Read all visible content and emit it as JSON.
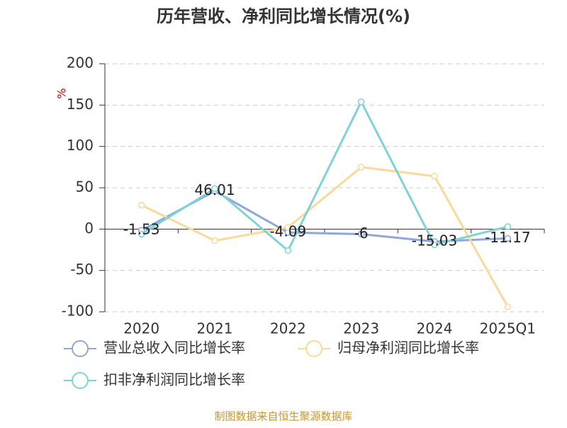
{
  "chart_data": {
    "type": "line",
    "title": "历年营收、净利同比增长情况(%)",
    "y_label": "%",
    "categories": [
      "2020",
      "2021",
      "2022",
      "2023",
      "2024",
      "2025Q1"
    ],
    "series": [
      {
        "name": "营业总收入同比增长率",
        "color": "#8fa8d8",
        "values": [
          -1.53,
          46.01,
          -4.09,
          -6,
          -15.03,
          -11.17
        ],
        "show_labels": true
      },
      {
        "name": "归母净利润同比增长率",
        "color": "#fad99a",
        "values": [
          29,
          -14,
          2,
          75,
          64,
          -94
        ]
      },
      {
        "name": "扣非净利润同比增长率",
        "color": "#7fd3d6",
        "values": [
          -6,
          49,
          -26,
          154,
          -19,
          3
        ]
      }
    ],
    "ylim": [
      -100,
      200
    ],
    "yticks": [
      -100,
      -50,
      0,
      50,
      100,
      150,
      200
    ],
    "grid": true,
    "source": "制图数据来自恒生聚源数据库"
  }
}
